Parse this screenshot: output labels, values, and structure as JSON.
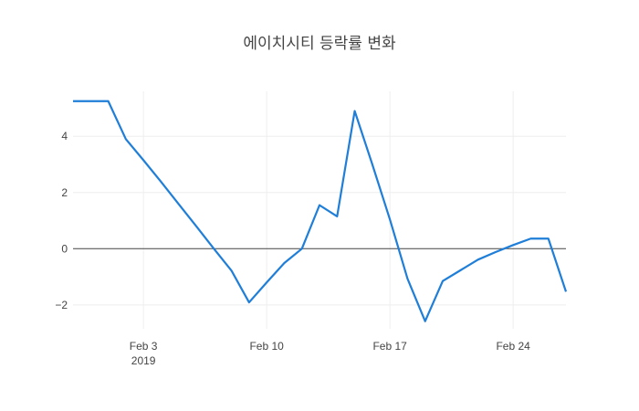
{
  "chart_data": {
    "type": "line",
    "title": "에이치시티 등락률 변화",
    "xlabel": "",
    "ylabel": "",
    "x_range": [
      "2019-01-30",
      "2019-02-27"
    ],
    "ylim": [
      -2.85,
      5.6
    ],
    "grid": true,
    "zero_line": true,
    "line_color": "#1f7ed8",
    "x_ticks": [
      {
        "date": "2019-02-03",
        "label": "Feb 3",
        "sublabel": "2019"
      },
      {
        "date": "2019-02-10",
        "label": "Feb 10",
        "sublabel": ""
      },
      {
        "date": "2019-02-17",
        "label": "Feb 17",
        "sublabel": ""
      },
      {
        "date": "2019-02-24",
        "label": "Feb 24",
        "sublabel": ""
      }
    ],
    "y_ticks": [
      {
        "value": -2,
        "label": "−2"
      },
      {
        "value": 0,
        "label": "0"
      },
      {
        "value": 2,
        "label": "2"
      },
      {
        "value": 4,
        "label": "4"
      }
    ],
    "series": [
      {
        "x": [
          "2019-01-30",
          "2019-01-31",
          "2019-02-01",
          "2019-02-02",
          "2019-02-03",
          "2019-02-04",
          "2019-02-05",
          "2019-02-06",
          "2019-02-07",
          "2019-02-08",
          "2019-02-09",
          "2019-02-10",
          "2019-02-11",
          "2019-02-12",
          "2019-02-13",
          "2019-02-14",
          "2019-02-15",
          "2019-02-16",
          "2019-02-17",
          "2019-02-18",
          "2019-02-19",
          "2019-02-20",
          "2019-02-21",
          "2019-02-22",
          "2019-02-23",
          "2019-02-24",
          "2019-02-25",
          "2019-02-26",
          "2019-02-27"
        ],
        "y": [
          5.25,
          5.25,
          5.25,
          3.9,
          3.15,
          2.38,
          1.59,
          0.8,
          0.0,
          -0.78,
          -1.91,
          -1.2,
          -0.51,
          0.0,
          1.55,
          1.15,
          4.9,
          3.0,
          1.04,
          -1.07,
          -2.58,
          -1.15,
          -0.77,
          -0.39,
          -0.12,
          0.13,
          0.36,
          0.36,
          -1.53
        ]
      }
    ]
  }
}
